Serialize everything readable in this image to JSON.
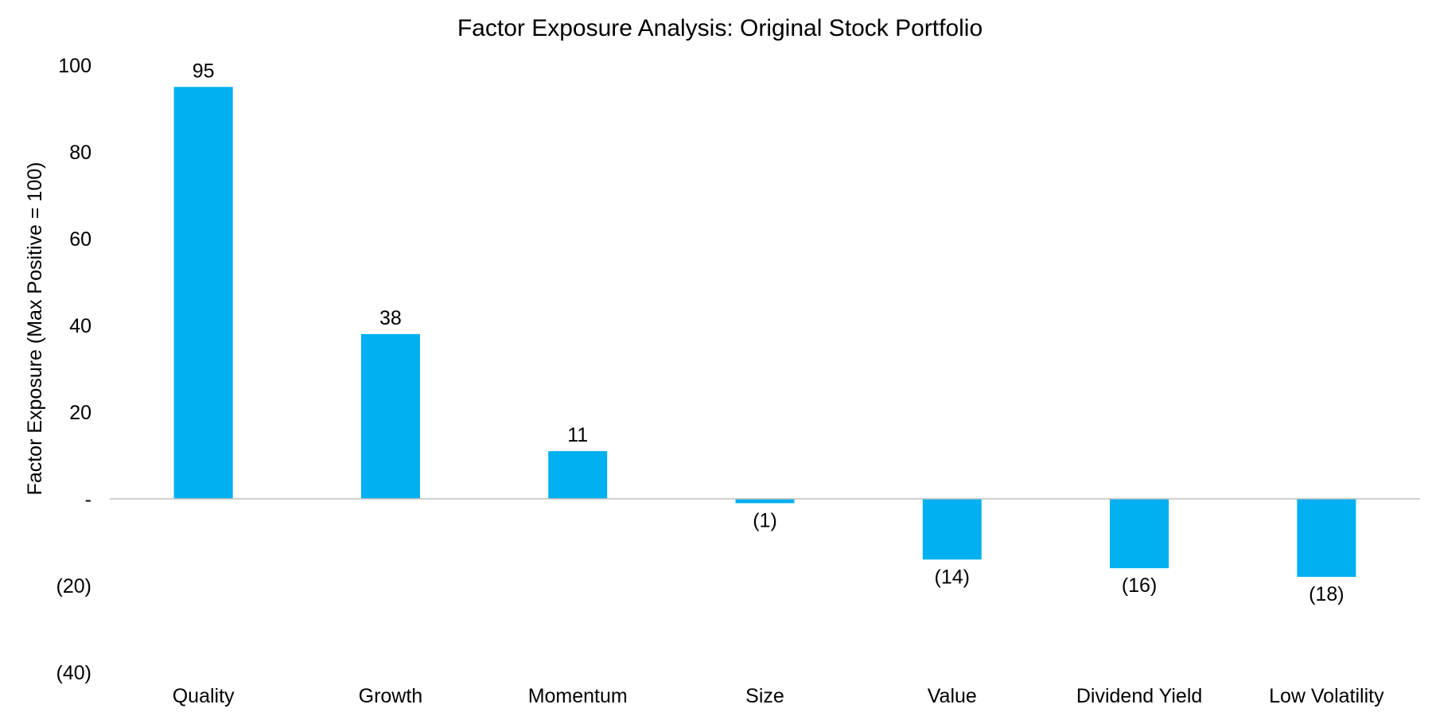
{
  "chart_data": {
    "type": "bar",
    "title": "Factor Exposure Analysis: Original Stock Portfolio",
    "xlabel": "",
    "ylabel": "Factor Exposure (Max Positive = 100)",
    "categories": [
      "Quality",
      "Growth",
      "Momentum",
      "Size",
      "Value",
      "Dividend Yield",
      "Low Volatility"
    ],
    "values": [
      95,
      38,
      11,
      -1,
      -14,
      -16,
      -18
    ],
    "value_labels": [
      "95",
      "38",
      "11",
      "(1)",
      "(14)",
      "(16)",
      "(18)"
    ],
    "ylim": [
      -40,
      100
    ],
    "y_ticks": [
      100,
      80,
      60,
      40,
      20,
      0,
      -20,
      -40
    ],
    "y_tick_labels": [
      "100",
      "80",
      "60",
      "40",
      "20",
      "-",
      "(20)",
      "(40)"
    ],
    "grid": false,
    "legend": "none",
    "colors": {
      "bar": "#00B0F0",
      "zero_line": "#BFBFBF"
    }
  }
}
